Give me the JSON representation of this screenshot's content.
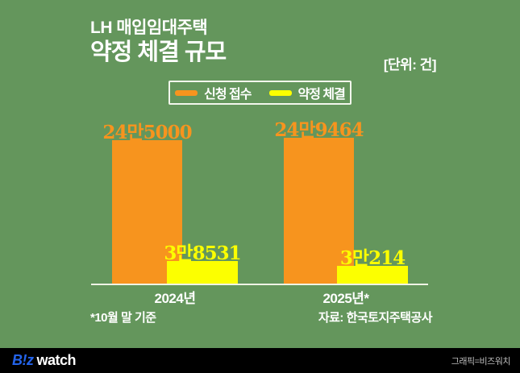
{
  "title": {
    "line1": "LH 매입임대주택",
    "line2": "약정 체결 규모",
    "unit": "[단위: 건]"
  },
  "legend": [
    {
      "label": "신청 접수",
      "color": "#F7941E"
    },
    {
      "label": "약정 체결",
      "color": "#FCFF00"
    }
  ],
  "chart_data": {
    "type": "bar",
    "title": "LH 매입임대주택 약정 체결 규모",
    "unit_label": "[단위: 건]",
    "categories": [
      "2024년",
      "2025년*"
    ],
    "series": [
      {
        "name": "신청 접수",
        "color": "#F7941E",
        "values": [
          245000,
          249464
        ],
        "value_labels": [
          "24만5000",
          "24만9464"
        ]
      },
      {
        "name": "약정 체결",
        "color": "#FCFF00",
        "values": [
          38531,
          30214
        ],
        "value_labels": [
          "3만8531",
          "3만214"
        ]
      }
    ],
    "ylim": [
      0,
      250000
    ],
    "grid": false,
    "legend_position": "top-center"
  },
  "footnotes": {
    "left": "*10월 말 기준",
    "right": "자료: 한국토지주택공사"
  },
  "footer": {
    "logo_biz": "B!z",
    "logo_watch": "watch",
    "credit": "그래픽=비즈워치"
  },
  "colors": {
    "background": "#64965C",
    "bar_applications": "#F7941E",
    "bar_contracts": "#FCFF00",
    "axis_line": "#EFF3E5",
    "title_text": "#FFFFFF",
    "footer_background": "#000000",
    "logo_blue": "#2464EB",
    "credit_text": "#BDBDBD"
  }
}
